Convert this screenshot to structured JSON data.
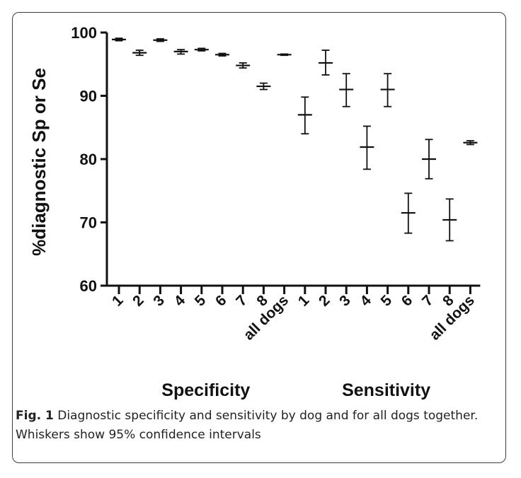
{
  "chart_data": {
    "type": "scatter",
    "ylabel": "%diagnostic Sp or Se",
    "ylim": [
      60,
      100
    ],
    "yticks": [
      60,
      70,
      80,
      90,
      100
    ],
    "groups": [
      {
        "name": "Specificity",
        "categories": [
          "1",
          "2",
          "3",
          "4",
          "5",
          "6",
          "7",
          "8",
          "all dogs"
        ],
        "values": [
          98.9,
          96.8,
          98.8,
          97.0,
          97.3,
          96.5,
          94.8,
          91.5,
          96.5
        ],
        "lower": [
          98.7,
          96.4,
          98.6,
          96.6,
          97.1,
          96.3,
          94.4,
          91.0,
          96.4
        ],
        "upper": [
          99.1,
          97.2,
          99.0,
          97.3,
          97.5,
          96.7,
          95.2,
          92.0,
          96.6
        ]
      },
      {
        "name": "Sensitivity",
        "categories": [
          "1",
          "2",
          "3",
          "4",
          "5",
          "6",
          "7",
          "8",
          "all dogs"
        ],
        "values": [
          87.0,
          95.2,
          91.0,
          81.9,
          91.0,
          71.5,
          80.0,
          70.4,
          82.6
        ],
        "lower": [
          84.0,
          93.3,
          88.3,
          78.4,
          88.3,
          68.3,
          76.9,
          67.1,
          82.3
        ],
        "upper": [
          89.8,
          97.2,
          93.5,
          85.2,
          93.5,
          74.6,
          83.1,
          73.7,
          82.9
        ]
      }
    ],
    "grid": false,
    "legend": "none"
  },
  "caption": {
    "label": "Fig. 1",
    "text": " Diagnostic specificity and sensitivity by dog and for all dogs together. Whiskers show 95% confidence intervals"
  }
}
